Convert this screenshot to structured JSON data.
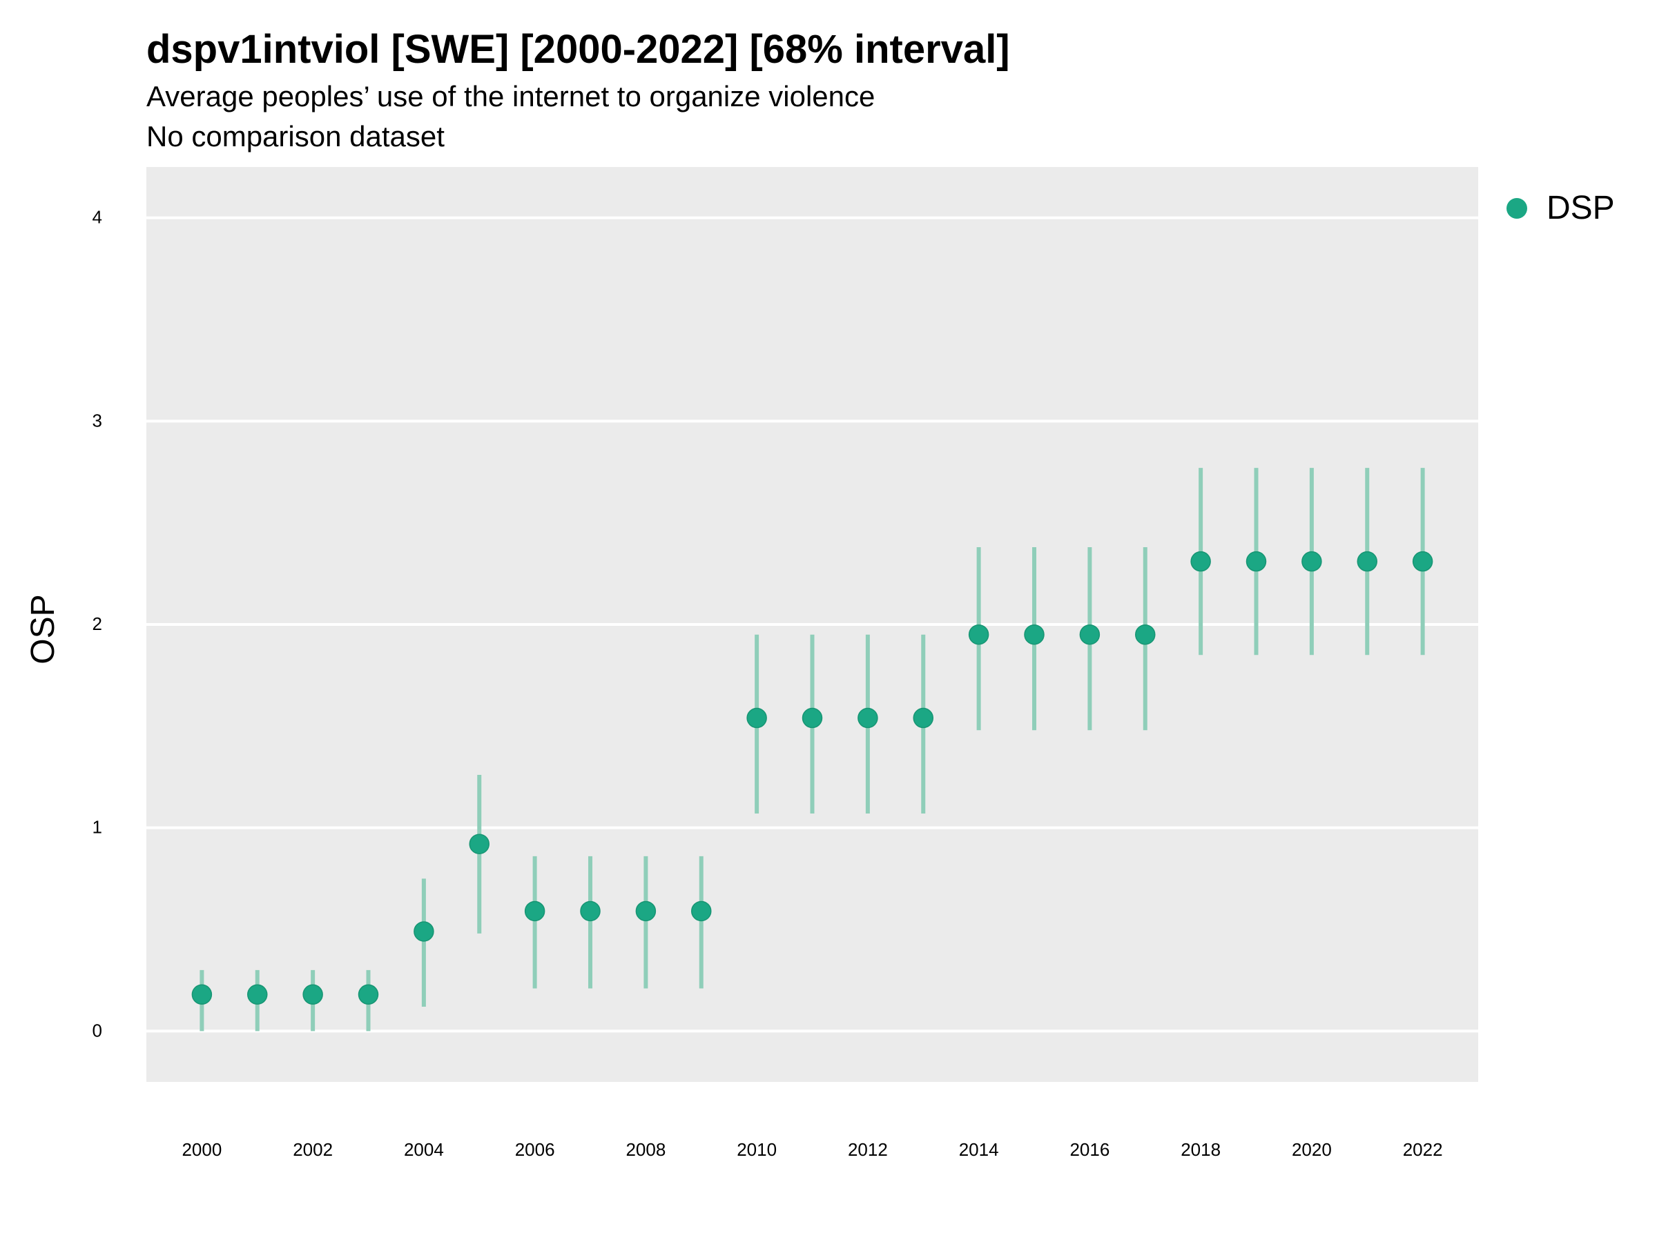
{
  "chart_data": {
    "type": "scatter",
    "title": "dspv1intviol [SWE] [2000-2022] [68% interval]",
    "subtitle": "Average peoples’ use of the internet to organize violence",
    "subtitle2": "No comparison dataset",
    "ylabel": "OSP",
    "xlabel": "",
    "xlim": [
      1999,
      2023
    ],
    "ylim": [
      -0.25,
      4.25
    ],
    "x_ticks": [
      2000,
      2002,
      2004,
      2006,
      2008,
      2010,
      2012,
      2014,
      2016,
      2018,
      2020,
      2022
    ],
    "y_ticks": [
      0,
      1,
      2,
      3,
      4
    ],
    "grid": true,
    "legend_position": "right",
    "series": [
      {
        "name": "DSP",
        "color": "#1ba784",
        "points": [
          {
            "x": 2000,
            "y": 0.18,
            "low": 0.0,
            "high": 0.3
          },
          {
            "x": 2001,
            "y": 0.18,
            "low": 0.0,
            "high": 0.3
          },
          {
            "x": 2002,
            "y": 0.18,
            "low": 0.0,
            "high": 0.3
          },
          {
            "x": 2003,
            "y": 0.18,
            "low": 0.0,
            "high": 0.3
          },
          {
            "x": 2004,
            "y": 0.49,
            "low": 0.12,
            "high": 0.75
          },
          {
            "x": 2005,
            "y": 0.92,
            "low": 0.48,
            "high": 1.26
          },
          {
            "x": 2006,
            "y": 0.59,
            "low": 0.21,
            "high": 0.86
          },
          {
            "x": 2007,
            "y": 0.59,
            "low": 0.21,
            "high": 0.86
          },
          {
            "x": 2008,
            "y": 0.59,
            "low": 0.21,
            "high": 0.86
          },
          {
            "x": 2009,
            "y": 0.59,
            "low": 0.21,
            "high": 0.86
          },
          {
            "x": 2010,
            "y": 1.54,
            "low": 1.07,
            "high": 1.95
          },
          {
            "x": 2011,
            "y": 1.54,
            "low": 1.07,
            "high": 1.95
          },
          {
            "x": 2012,
            "y": 1.54,
            "low": 1.07,
            "high": 1.95
          },
          {
            "x": 2013,
            "y": 1.54,
            "low": 1.07,
            "high": 1.95
          },
          {
            "x": 2014,
            "y": 1.95,
            "low": 1.48,
            "high": 2.38
          },
          {
            "x": 2015,
            "y": 1.95,
            "low": 1.48,
            "high": 2.38
          },
          {
            "x": 2016,
            "y": 1.95,
            "low": 1.48,
            "high": 2.38
          },
          {
            "x": 2017,
            "y": 1.95,
            "low": 1.48,
            "high": 2.38
          },
          {
            "x": 2018,
            "y": 2.31,
            "low": 1.85,
            "high": 2.77
          },
          {
            "x": 2019,
            "y": 2.31,
            "low": 1.85,
            "high": 2.77
          },
          {
            "x": 2020,
            "y": 2.31,
            "low": 1.85,
            "high": 2.77
          },
          {
            "x": 2021,
            "y": 2.31,
            "low": 1.85,
            "high": 2.77
          },
          {
            "x": 2022,
            "y": 2.31,
            "low": 1.85,
            "high": 2.77
          }
        ]
      }
    ]
  },
  "colors": {
    "panel_background": "#ebebeb",
    "grid": "#ffffff",
    "point": "#1ba784",
    "interval": "#8fceb9"
  }
}
